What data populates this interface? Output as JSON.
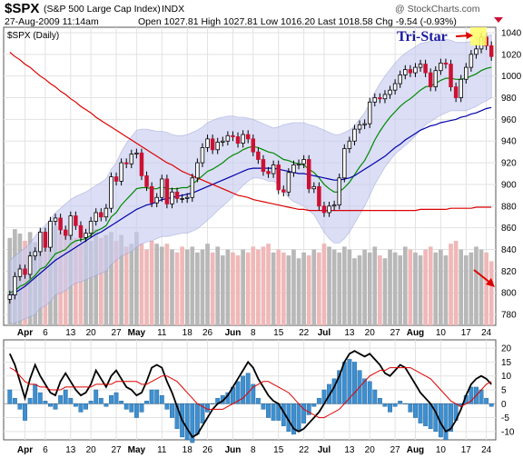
{
  "header": {
    "symbol": "$SPX",
    "name": "(S&P 500 Large Cap Index)",
    "exchange": "INDX",
    "date_time": "27-Aug-2009 11:14am",
    "quote": "Open 1027.81  High 1027.81  Low 1016.20  Last 1018.58  Chg -9.54 (-0.93%)",
    "watermark": "@ StockCharts.com",
    "period_label": "$SPX (Daily)"
  },
  "annotation": {
    "text": "Tri-Star"
  },
  "colors": {
    "up_candle": "#ffffff",
    "down_candle": "#cc1133",
    "ma_fast": "#008800",
    "ma_mid": "#0000aa",
    "ma_slow": "#dd0000",
    "bollinger_fill": "#c8cdf0",
    "volume_up": "#b8b8b8",
    "volume_down": "#f0b8b8",
    "histogram": "#3d8fd0",
    "annotation": "#1a1aa0",
    "arrow": "#dd0000",
    "highlight": "#ffff66"
  },
  "chart_data": [
    {
      "type": "candlestick",
      "panel": "price",
      "ylim": [
        770,
        1045
      ],
      "y_ticks": [
        780,
        800,
        820,
        840,
        860,
        880,
        900,
        920,
        940,
        960,
        980,
        1000,
        1020,
        1040
      ],
      "x_tick_labels": [
        "Apr",
        "6",
        "13",
        "20",
        "27",
        "May",
        "11",
        "18",
        "26",
        "Jun",
        "8",
        "15",
        "22",
        "Jul",
        "13",
        "20",
        "27",
        "Aug",
        "10",
        "17",
        "24"
      ],
      "close": [
        798,
        815,
        822,
        817,
        834,
        838,
        856,
        842,
        866,
        869,
        858,
        853,
        871,
        862,
        851,
        855,
        866,
        874,
        870,
        878,
        907,
        903,
        920,
        919,
        928,
        929,
        908,
        898,
        883,
        888,
        905,
        882,
        893,
        887,
        887,
        888,
        906,
        920,
        934,
        942,
        932,
        939,
        940,
        945,
        944,
        938,
        946,
        942,
        930,
        923,
        912,
        910,
        918,
        895,
        893,
        911,
        918,
        919,
        923,
        896,
        898,
        880,
        874,
        880,
        881,
        906,
        933,
        940,
        951,
        955,
        956,
        976,
        980,
        979,
        983,
        987,
        993,
        1001,
        1006,
        1003,
        1008,
        1011,
        1003,
        990,
        1005,
        1012,
        1011,
        990,
        980,
        997,
        1008,
        1020,
        1025,
        1036,
        1028,
        1018
      ],
      "series": [
        {
          "name": "MA fast",
          "values": [
            800,
            802,
            806,
            808,
            812,
            816,
            822,
            824,
            830,
            836,
            838,
            840,
            845,
            848,
            849,
            850,
            853,
            857,
            859,
            862,
            870,
            874,
            881,
            886,
            891,
            896,
            897,
            897,
            896,
            896,
            898,
            896,
            896,
            896,
            897,
            897,
            900,
            904,
            908,
            912,
            914,
            917,
            920,
            924,
            927,
            929,
            932,
            934,
            935,
            934,
            932,
            930,
            929,
            926,
            923,
            922,
            920,
            919,
            918,
            914,
            911,
            906,
            900,
            896,
            893,
            893,
            897,
            902,
            909,
            916,
            922,
            931,
            941,
            949,
            956,
            962,
            967,
            972,
            976,
            979,
            983,
            987,
            990,
            991,
            993,
            996,
            998,
            998,
            997,
            997,
            998,
            1000,
            1002,
            1005,
            1007,
            1008
          ]
        },
        {
          "name": "MA mid",
          "values": [
            797,
            800,
            803,
            806,
            810,
            814,
            818,
            822,
            826,
            830,
            833,
            836,
            839,
            842,
            845,
            848,
            851,
            854,
            856,
            859,
            862,
            865,
            868,
            871,
            874,
            877,
            879,
            881,
            882,
            884,
            886,
            887,
            888,
            889,
            890,
            891,
            892,
            894,
            896,
            898,
            900,
            902,
            904,
            906,
            908,
            910,
            912,
            914,
            915,
            915,
            915,
            915,
            915,
            914,
            913,
            912,
            911,
            910,
            910,
            909,
            908,
            907,
            906,
            905,
            904,
            904,
            905,
            906,
            908,
            911,
            914,
            917,
            920,
            923,
            926,
            930,
            934,
            937,
            941,
            944,
            947,
            950,
            952,
            954,
            955,
            957,
            958,
            959,
            960,
            962,
            963,
            965,
            966,
            968,
            970,
            971
          ]
        },
        {
          "name": "MA slow",
          "values": [
            1022,
            1018,
            1015,
            1011,
            1008,
            1004,
            1000,
            997,
            993,
            990,
            986,
            983,
            979,
            976,
            972,
            969,
            966,
            962,
            959,
            956,
            953,
            950,
            947,
            944,
            941,
            938,
            935,
            932,
            929,
            926,
            923,
            920,
            918,
            915,
            912,
            910,
            908,
            906,
            904,
            902,
            900,
            898,
            896,
            894,
            892,
            890,
            889,
            888,
            886,
            885,
            884,
            883,
            882,
            881,
            880,
            879,
            878,
            877,
            877,
            876,
            876,
            876,
            876,
            876,
            876,
            876,
            876,
            876,
            876,
            876,
            876,
            876,
            876,
            876,
            876,
            876,
            876,
            876,
            876,
            876,
            876,
            877,
            877,
            877,
            877,
            877,
            877,
            878,
            878,
            878,
            878,
            878,
            879,
            879,
            879,
            879
          ]
        },
        {
          "name": "Bollinger upper",
          "values": [
            830,
            834,
            838,
            841,
            846,
            852,
            858,
            862,
            868,
            874,
            878,
            882,
            886,
            889,
            891,
            893,
            896,
            899,
            902,
            905,
            914,
            920,
            930,
            938,
            944,
            950,
            951,
            951,
            950,
            949,
            949,
            948,
            946,
            945,
            945,
            946,
            948,
            950,
            953,
            957,
            959,
            961,
            962,
            963,
            963,
            962,
            962,
            961,
            960,
            958,
            956,
            954,
            952,
            953,
            955,
            956,
            957,
            957,
            957,
            955,
            954,
            952,
            950,
            948,
            946,
            946,
            948,
            950,
            954,
            960,
            966,
            975,
            985,
            993,
            1000,
            1006,
            1012,
            1017,
            1021,
            1024,
            1027,
            1030,
            1031,
            1032,
            1033,
            1034,
            1034,
            1033,
            1031,
            1031,
            1031,
            1032,
            1033,
            1035,
            1037,
            1038
          ]
        },
        {
          "name": "Bollinger lower",
          "values": [
            772,
            772,
            774,
            776,
            778,
            780,
            786,
            788,
            792,
            798,
            800,
            802,
            806,
            809,
            810,
            812,
            814,
            816,
            818,
            820,
            826,
            830,
            834,
            836,
            838,
            842,
            845,
            847,
            848,
            850,
            852,
            852,
            853,
            854,
            855,
            855,
            857,
            859,
            863,
            867,
            871,
            876,
            880,
            884,
            889,
            894,
            899,
            903,
            906,
            906,
            905,
            903,
            903,
            900,
            894,
            888,
            884,
            882,
            880,
            876,
            872,
            864,
            856,
            850,
            846,
            846,
            850,
            856,
            864,
            872,
            880,
            890,
            900,
            908,
            916,
            922,
            928,
            932,
            936,
            940,
            945,
            950,
            955,
            958,
            961,
            964,
            966,
            968,
            968,
            968,
            968,
            970,
            972,
            975,
            977,
            980
          ]
        }
      ]
    },
    {
      "type": "bar",
      "panel": "volume",
      "values": [
        60,
        66,
        63,
        58,
        64,
        57,
        62,
        60,
        66,
        68,
        64,
        62,
        70,
        60,
        56,
        62,
        58,
        66,
        60,
        62,
        64,
        58,
        62,
        54,
        56,
        64,
        56,
        52,
        58,
        56,
        54,
        56,
        52,
        50,
        54,
        52,
        54,
        50,
        52,
        56,
        50,
        54,
        48,
        52,
        50,
        48,
        52,
        50,
        54,
        52,
        54,
        56,
        50,
        52,
        50,
        48,
        52,
        46,
        50,
        48,
        52,
        50,
        56,
        54,
        52,
        50,
        54,
        52,
        46,
        48,
        52,
        50,
        54,
        48,
        46,
        52,
        50,
        48,
        54,
        52,
        50,
        48,
        52,
        54,
        50,
        52,
        48,
        56,
        58,
        52,
        48,
        50,
        54,
        52,
        50,
        44
      ],
      "down_days": [
        3,
        7,
        10,
        11,
        13,
        14,
        18,
        21,
        23,
        26,
        27,
        28,
        31,
        33,
        34,
        40,
        44,
        45,
        47,
        48,
        49,
        50,
        51,
        53,
        54,
        59,
        61,
        62,
        73,
        79,
        82,
        83,
        87,
        88,
        94,
        95
      ]
    },
    {
      "type": "line",
      "panel": "oscillator",
      "ylim": [
        -13,
        23
      ],
      "y_ticks": [
        -10,
        -5,
        0,
        5,
        10,
        15,
        20
      ],
      "x_tick_labels": [
        "Apr",
        "6",
        "13",
        "20",
        "27",
        "May",
        "11",
        "18",
        "26",
        "Jun",
        "8",
        "15",
        "22",
        "Jul",
        "13",
        "20",
        "27",
        "Aug",
        "10",
        "17",
        "24"
      ],
      "series": [
        {
          "name": "Oscillator",
          "values": [
            18,
            14,
            8,
            2,
            9,
            14,
            10,
            7,
            4,
            3,
            8,
            11,
            8,
            5,
            3,
            4,
            7,
            12,
            9,
            6,
            10,
            12,
            9,
            6,
            5,
            3,
            4,
            8,
            13,
            14,
            13,
            8,
            4,
            -1,
            -6,
            -9,
            -12,
            -11,
            -8,
            -5,
            -2,
            0,
            1,
            3,
            6,
            9,
            12,
            15,
            13,
            9,
            6,
            3,
            1,
            0,
            -3,
            -6,
            -9,
            -10,
            -9,
            -7,
            -5,
            -3,
            0,
            3,
            6,
            10,
            15,
            18,
            19,
            18,
            17,
            18,
            16,
            14,
            11,
            10,
            12,
            14,
            13,
            10,
            7,
            4,
            2,
            0,
            -3,
            -7,
            -10,
            -9,
            -6,
            -2,
            3,
            7,
            9,
            10,
            9,
            7
          ]
        },
        {
          "name": "Signal",
          "values": [
            13,
            12,
            10,
            8,
            7,
            7,
            6,
            6,
            5,
            5,
            5,
            6,
            6,
            6,
            6,
            6,
            6,
            7,
            7,
            7,
            7,
            8,
            8,
            8,
            8,
            8,
            7,
            7,
            8,
            9,
            10,
            10,
            9,
            8,
            6,
            4,
            2,
            0,
            -1,
            -2,
            -2,
            -2,
            -2,
            -1,
            0,
            1,
            2,
            4,
            6,
            7,
            8,
            8,
            7,
            6,
            5,
            4,
            2,
            0,
            -2,
            -3,
            -4,
            -5,
            -5,
            -4,
            -3,
            -2,
            0,
            2,
            4,
            6,
            8,
            10,
            11,
            12,
            12,
            13,
            13,
            13,
            13,
            13,
            12,
            11,
            10,
            9,
            7,
            5,
            3,
            1,
            0,
            -1,
            0,
            1,
            3,
            5,
            7,
            8
          ]
        },
        {
          "name": "Histogram",
          "values": [
            5,
            2,
            -2,
            -6,
            2,
            7,
            4,
            1,
            -1,
            -2,
            3,
            5,
            2,
            -1,
            -3,
            -2,
            1,
            5,
            2,
            -1,
            3,
            4,
            1,
            -2,
            -3,
            -5,
            -3,
            1,
            5,
            5,
            3,
            -2,
            -5,
            -9,
            -12,
            -13,
            -14,
            -11,
            -7,
            -3,
            0,
            2,
            3,
            4,
            6,
            8,
            10,
            11,
            7,
            2,
            -2,
            -5,
            -6,
            -6,
            -8,
            -10,
            -11,
            -10,
            -7,
            -4,
            -1,
            2,
            5,
            7,
            9,
            12,
            15,
            16,
            15,
            12,
            9,
            8,
            5,
            2,
            -1,
            -3,
            -1,
            1,
            0,
            -3,
            -5,
            -7,
            -8,
            -9,
            -10,
            -12,
            -13,
            -10,
            -6,
            -1,
            3,
            6,
            6,
            5,
            2,
            -1
          ]
        }
      ]
    }
  ]
}
